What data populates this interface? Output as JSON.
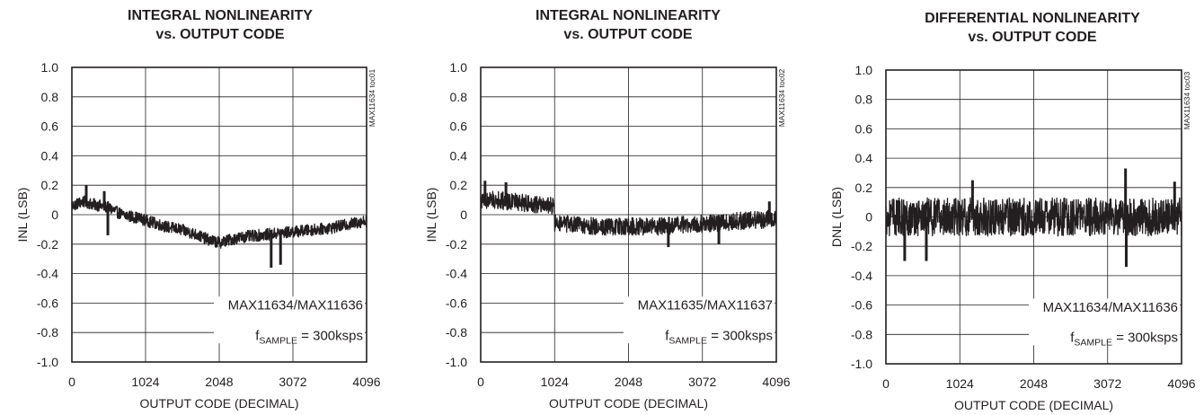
{
  "chart_data": [
    {
      "type": "line",
      "title_line1": "INTEGRAL NONLINEARITY",
      "title_line2": "vs. OUTPUT CODE",
      "xlabel": "OUTPUT CODE (DECIMAL)",
      "ylabel": "INL (LSB)",
      "xlim": [
        0,
        4096
      ],
      "ylim": [
        -1.0,
        1.0
      ],
      "xticks": [
        "0",
        "1024",
        "2048",
        "3072",
        "4096"
      ],
      "yticks": [
        "1.0",
        "0.8",
        "0.6",
        "0.4",
        "0.2",
        "0",
        "-0.2",
        "-0.4",
        "-0.6",
        "-0.8",
        "-1.0"
      ],
      "grid": true,
      "annotation_line1": "MAX11634/MAX11636",
      "annotation_f": "f",
      "annotation_sub": "SAMPLE",
      "annotation_rest": " = 300ksps",
      "toc_id": "MAX11634 toc01",
      "trend": {
        "x": [
          0,
          150,
          300,
          500,
          700,
          900,
          1100,
          1300,
          1500,
          1700,
          1900,
          2048,
          2200,
          2400,
          2600,
          2800,
          3000,
          3200,
          3400,
          3600,
          3800,
          4000,
          4096
        ],
        "y": [
          0.06,
          0.09,
          0.07,
          0.05,
          0.0,
          -0.02,
          -0.05,
          -0.08,
          -0.1,
          -0.13,
          -0.17,
          -0.19,
          -0.17,
          -0.15,
          -0.14,
          -0.13,
          -0.12,
          -0.11,
          -0.1,
          -0.09,
          -0.07,
          -0.05,
          -0.04
        ]
      },
      "noise_amplitude": 0.04,
      "min_spikes": [
        {
          "x": 2770,
          "y": -0.36
        },
        {
          "x": 2900,
          "y": -0.34
        },
        {
          "x": 500,
          "y": -0.14
        }
      ],
      "max_spikes": [
        {
          "x": 200,
          "y": 0.2
        },
        {
          "x": 450,
          "y": 0.16
        }
      ]
    },
    {
      "type": "line",
      "title_line1": "INTEGRAL NONLINEARITY",
      "title_line2": "vs. OUTPUT CODE",
      "xlabel": "OUTPUT CODE (DECIMAL)",
      "ylabel": "INL (LSB)",
      "xlim": [
        0,
        4096
      ],
      "ylim": [
        -1.0,
        1.0
      ],
      "xticks": [
        "0",
        "1024",
        "2048",
        "3072",
        "4096"
      ],
      "yticks": [
        "1.0",
        "0.8",
        "0.6",
        "0.4",
        "0.2",
        "0",
        "-0.2",
        "-0.4",
        "-0.6",
        "-0.8",
        "-1.0"
      ],
      "grid": true,
      "annotation_line1": "MAX11635/MAX11637",
      "annotation_f": "f",
      "annotation_sub": "SAMPLE",
      "annotation_rest": " = 300ksps",
      "toc_id": "MAX11634 toc02",
      "trend": {
        "x": [
          0,
          200,
          400,
          600,
          800,
          1000,
          1023,
          1024,
          1300,
          1600,
          1900,
          2200,
          2500,
          2800,
          3100,
          3400,
          3700,
          4000,
          4096
        ],
        "y": [
          0.09,
          0.1,
          0.09,
          0.08,
          0.07,
          0.06,
          0.06,
          -0.06,
          -0.07,
          -0.08,
          -0.08,
          -0.08,
          -0.08,
          -0.07,
          -0.06,
          -0.05,
          -0.04,
          -0.03,
          -0.02
        ]
      },
      "noise_amplitude": 0.06,
      "min_spikes": [
        {
          "x": 2600,
          "y": -0.22
        },
        {
          "x": 3300,
          "y": -0.2
        }
      ],
      "max_spikes": [
        {
          "x": 60,
          "y": 0.23
        },
        {
          "x": 350,
          "y": 0.22
        },
        {
          "x": 4000,
          "y": 0.09
        }
      ]
    },
    {
      "type": "line",
      "title_line1": "DIFFERENTIAL NONLINEARITY",
      "title_line2": "vs. OUTPUT CODE",
      "xlabel": "OUTPUT CODE (DECIMAL)",
      "ylabel": "DNL (LSB)",
      "xlim": [
        0,
        4096
      ],
      "ylim": [
        -1.0,
        1.0
      ],
      "xticks": [
        "0",
        "1024",
        "2048",
        "3072",
        "4096"
      ],
      "yticks": [
        "1.0",
        "0.8",
        "0.6",
        "0.4",
        "0.2",
        "0",
        "-0.2",
        "-0.4",
        "-0.6",
        "-0.8",
        "-1.0"
      ],
      "grid": true,
      "annotation_line1": "MAX11634/MAX11636",
      "annotation_f": "f",
      "annotation_sub": "SAMPLE",
      "annotation_rest": " = 300ksps",
      "toc_id": "MAX11634 toc03",
      "trend": {
        "x": [
          0,
          1024,
          2048,
          3072,
          4096
        ],
        "y": [
          0.0,
          0.0,
          0.0,
          0.0,
          0.0
        ]
      },
      "noise_amplitude": 0.13,
      "min_spikes": [
        {
          "x": 260,
          "y": -0.3
        },
        {
          "x": 560,
          "y": -0.3
        },
        {
          "x": 3330,
          "y": -0.34
        }
      ],
      "max_spikes": [
        {
          "x": 1200,
          "y": 0.25
        },
        {
          "x": 3320,
          "y": 0.33
        },
        {
          "x": 4000,
          "y": 0.24
        }
      ]
    }
  ]
}
